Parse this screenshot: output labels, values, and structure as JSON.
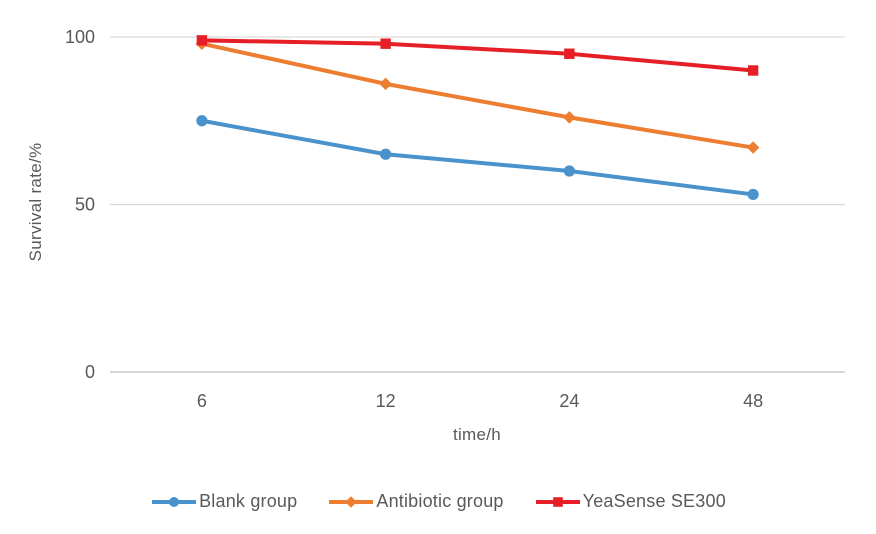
{
  "chart_data": {
    "type": "line",
    "title": "",
    "xlabel": "time/h",
    "ylabel": "Survival rate/%",
    "categories": [
      "6",
      "12",
      "24",
      "48"
    ],
    "y_ticks": [
      0,
      50,
      100
    ],
    "ylim": [
      0,
      100
    ],
    "grid": "horizontal-only",
    "legend_position": "bottom-center",
    "series": [
      {
        "name": "Blank group",
        "marker": "circle",
        "color": "#4a92cc",
        "values": [
          75,
          65,
          60,
          53
        ]
      },
      {
        "name": "Antibiotic group",
        "marker": "diamond",
        "color": "#ed7d31",
        "values": [
          98,
          86,
          76,
          67
        ]
      },
      {
        "name": "YeaSense SE300",
        "marker": "square",
        "color": "#e61e26",
        "values": [
          99,
          98,
          95,
          90
        ]
      }
    ]
  },
  "style": {
    "gridline_color": "#d9d9d9",
    "axisline_color": "#c9c9c9",
    "tick_label_color": "#595959",
    "background": "#ffffff"
  }
}
